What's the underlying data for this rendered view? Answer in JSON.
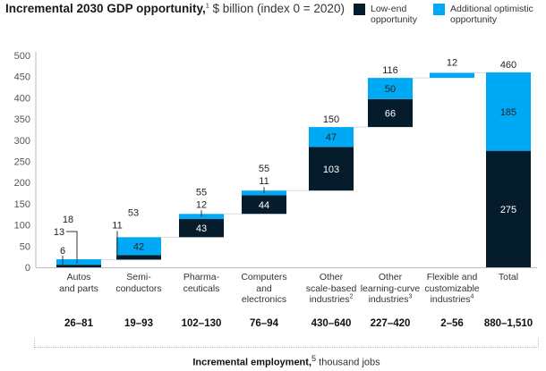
{
  "title": {
    "bold": "Incremental 2030 GDP opportunity,",
    "footnote": "1",
    "rest": " $ billion (index 0 = 2020)"
  },
  "legend": [
    {
      "label_line1": "Low-end",
      "label_line2": "opportunity",
      "color": "#051c2c"
    },
    {
      "label_line1": "Additional optimistic",
      "label_line2": "opportunity",
      "color": "#00a9f4"
    }
  ],
  "employment_caption": {
    "bold": "Incremental employment,",
    "footnote": "5",
    "rest": " thousand jobs"
  },
  "chart_data": {
    "type": "bar",
    "subtype": "waterfall-stacked",
    "title": "Incremental 2030 GDP opportunity, $ billion (index 0 = 2020)",
    "ylim": [
      0,
      500
    ],
    "yticks": [
      0,
      50,
      100,
      150,
      200,
      250,
      300,
      350,
      400,
      450,
      500
    ],
    "grid": false,
    "legend_position": "top-right",
    "categories": [
      {
        "lines": [
          "Autos",
          "and parts"
        ],
        "sup": ""
      },
      {
        "lines": [
          "Semi-",
          "conductors"
        ],
        "sup": ""
      },
      {
        "lines": [
          "Pharma-",
          "ceuticals"
        ],
        "sup": ""
      },
      {
        "lines": [
          "Computers",
          "and",
          "electronics"
        ],
        "sup": ""
      },
      {
        "lines": [
          "Other",
          "scale-based",
          "industries"
        ],
        "sup": "2"
      },
      {
        "lines": [
          "Other",
          "learning-curve",
          "industries"
        ],
        "sup": "3"
      },
      {
        "lines": [
          "Flexible and",
          "customizable",
          "industries"
        ],
        "sup": "4"
      },
      {
        "lines": [
          "Total"
        ],
        "sup": ""
      }
    ],
    "series": [
      {
        "name": "Low-end opportunity",
        "color": "#051c2c",
        "values": [
          6,
          11,
          43,
          44,
          103,
          66,
          0,
          275
        ]
      },
      {
        "name": "Additional optimistic opportunity",
        "color": "#00a9f4",
        "values": [
          13,
          42,
          12,
          11,
          47,
          50,
          12,
          185
        ]
      }
    ],
    "bases": [
      0,
      18,
      71,
      126,
      181,
      331,
      447,
      0
    ],
    "totals": [
      18,
      53,
      55,
      55,
      150,
      116,
      12,
      460
    ],
    "low_labels": [
      "6",
      "11",
      "43",
      "44",
      "103",
      "66",
      "",
      "275"
    ],
    "opt_labels": [
      "13",
      "42",
      "12",
      "11",
      "47",
      "50",
      "",
      "185"
    ],
    "total_labels": [
      "18",
      "53",
      "55",
      "55",
      "150",
      "116",
      "12",
      "460"
    ],
    "employment": [
      "26–81",
      "19–93",
      "102–130",
      "76–94",
      "430–640",
      "227–420",
      "2–56",
      "880–1,510"
    ]
  }
}
